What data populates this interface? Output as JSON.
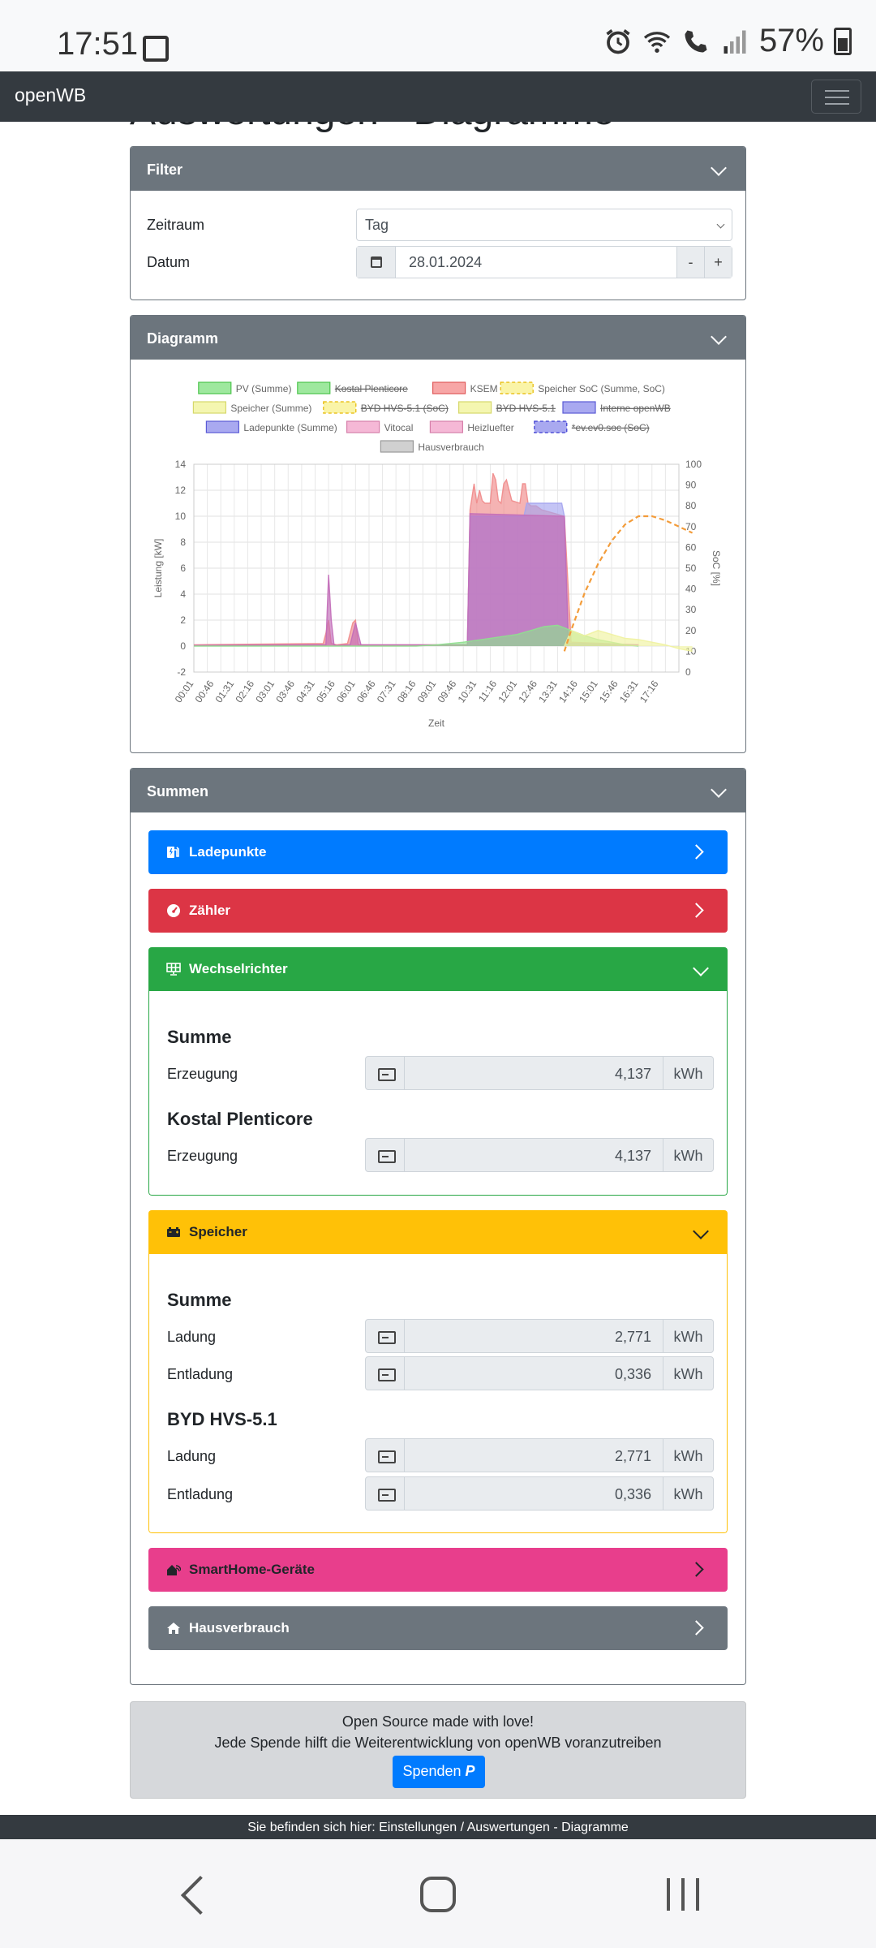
{
  "status": {
    "time": "17:51",
    "battery": "57%"
  },
  "nav": {
    "brand": "openWB"
  },
  "page": {
    "title": "Auswertungen - Diagramme"
  },
  "filter": {
    "header": "Filter",
    "zeitraum_label": "Zeitraum",
    "zeitraum_value": "Tag",
    "datum_label": "Datum",
    "datum_value": "28.01.2024",
    "minus": "-",
    "plus": "+"
  },
  "diagramm": {
    "header": "Diagramm"
  },
  "chart_data": {
    "type": "area",
    "xlabel": "Zeit",
    "ylabel": "Leistung [kW]",
    "y2label": "SoC [%]",
    "ylim": [
      -2,
      14
    ],
    "y2lim": [
      0,
      100
    ],
    "yticks": [
      "14",
      "12",
      "10",
      "8",
      "6",
      "4",
      "2",
      "0",
      "-2"
    ],
    "y2ticks": [
      "100",
      "90",
      "80",
      "70",
      "60",
      "50",
      "40",
      "30",
      "20",
      "10",
      "0"
    ],
    "categories": [
      "00:01",
      "00:46",
      "01:31",
      "02:16",
      "03:01",
      "03:46",
      "04:31",
      "05:16",
      "06:01",
      "06:46",
      "07:31",
      "08:16",
      "09:01",
      "09:46",
      "10:31",
      "11:16",
      "12:01",
      "12:46",
      "13:31",
      "14:16",
      "15:01",
      "15:46",
      "16:31",
      "17:16"
    ],
    "legend": [
      {
        "name": "PV (Summe)",
        "color": "#9ee89e",
        "border": "#4cc44c",
        "dashed": false,
        "hidden": false
      },
      {
        "name": "Kostal Plenticore",
        "color": "#9ee89e",
        "border": "#4cc44c",
        "dashed": false,
        "hidden": true
      },
      {
        "name": "KSEM",
        "color": "#f7a6a6",
        "border": "#e05a5a",
        "dashed": false,
        "hidden": false
      },
      {
        "name": "Speicher SoC (Summe, SoC)",
        "color": "#faf4a8",
        "border": "#e6b800",
        "dashed": true,
        "hidden": false
      },
      {
        "name": "Speicher (Summe)",
        "color": "#f4f6b0",
        "border": "#d6d86a",
        "dashed": false,
        "hidden": false
      },
      {
        "name": "BYD HVS-5.1 (SoC)",
        "color": "#faf4a8",
        "border": "#e6b800",
        "dashed": true,
        "hidden": true
      },
      {
        "name": "BYD HVS-5.1",
        "color": "#f4f6b0",
        "border": "#d6d86a",
        "dashed": false,
        "hidden": true
      },
      {
        "name": "Interne openWB",
        "color": "#a9a9f0",
        "border": "#5a5ad6",
        "dashed": false,
        "hidden": true
      },
      {
        "name": "Ladepunkte (Summe)",
        "color": "#a9a9f0",
        "border": "#5a5ad6",
        "dashed": false,
        "hidden": false
      },
      {
        "name": "Vitocal",
        "color": "#f5b8d6",
        "border": "#d680aa",
        "dashed": false,
        "hidden": false
      },
      {
        "name": "Heizluefter",
        "color": "#f5b8d6",
        "border": "#d680aa",
        "dashed": false,
        "hidden": false
      },
      {
        "name": "*ev.ev0.soc (SoC)",
        "color": "#a9a9f0",
        "border": "#3a3ad0",
        "dashed": true,
        "hidden": true
      },
      {
        "name": "Hausverbrauch",
        "color": "#d0d0d0",
        "border": "#999999",
        "dashed": false,
        "hidden": false
      }
    ],
    "series": [
      {
        "name": "KSEM",
        "color": "#f08a8a",
        "x": [
          0,
          9.6,
          9.8,
          10.0,
          10.2,
          10.6,
          11.4,
          11.8,
          12.0,
          12.2,
          13.4,
          20.3,
          20.5,
          20.8,
          21.0,
          21.2,
          21.4,
          21.6,
          22.0,
          22.2,
          22.4,
          22.6,
          22.8,
          23.0,
          23.2,
          23.6,
          24.2,
          24.4,
          24.6,
          24.8,
          25.0,
          25.4,
          25.8,
          27.5,
          28.0,
          33.0
        ],
        "y": [
          0.1,
          0.2,
          1.0,
          2.0,
          0.2,
          0.1,
          0.2,
          1.8,
          2.0,
          0.1,
          0.1,
          0.1,
          10.5,
          12.5,
          11.0,
          12.0,
          11.2,
          11.0,
          11.0,
          13.3,
          12.8,
          11.2,
          11.0,
          12.5,
          12.8,
          11.2,
          11.0,
          12.5,
          12.5,
          11.0,
          10.8,
          10.8,
          10.5,
          10.0,
          0.3,
          0.1
        ]
      },
      {
        "name": "Ladepunkte (Summe)",
        "color": "#a5a5f0",
        "x": [
          20.3,
          20.5,
          24.5,
          24.7,
          27.3,
          27.5,
          27.8
        ],
        "y": [
          0,
          10.0,
          10.0,
          11.0,
          11.0,
          10.0,
          0
        ]
      },
      {
        "name": "Vitocal",
        "color": "#c26bb8",
        "x": [
          0,
          9.8,
          10.0,
          10.2,
          10.4,
          10.6,
          11.6,
          12.0,
          12.4,
          20.3,
          20.5,
          27.5,
          27.8,
          33.0
        ],
        "y": [
          0.05,
          0.1,
          5.5,
          2.0,
          0.1,
          0.05,
          0.1,
          1.8,
          0.1,
          0.1,
          10.2,
          10.0,
          0.2,
          0.1
        ]
      },
      {
        "name": "PV (Summe)",
        "color": "#8fe08f",
        "x": [
          0,
          16.5,
          18.0,
          20.0,
          22.0,
          24.0,
          25.0,
          26.0,
          27.0,
          28.0,
          29.0,
          30.0,
          31.0,
          32.0,
          33.0
        ],
        "y": [
          0,
          0,
          0.1,
          0.3,
          0.6,
          0.9,
          1.2,
          1.5,
          1.6,
          1.2,
          0.8,
          0.5,
          0.3,
          0.1,
          0
        ]
      },
      {
        "name": "Speicher (Summe)",
        "color": "#f0f2a0",
        "x": [
          27.5,
          28.0,
          28.5,
          29.0,
          30.0,
          31.0,
          32.0,
          33.0,
          34.0,
          35.0,
          36.0,
          37.0
        ],
        "y": [
          0,
          1.2,
          1.0,
          0.8,
          1.2,
          0.9,
          0.6,
          0.5,
          0.3,
          0.1,
          -0.2,
          -0.4
        ]
      },
      {
        "name": "Speicher SoC (Summe, SoC)",
        "color": "#f39c3a",
        "axis": "right",
        "x": [
          27.5,
          28.0,
          29.0,
          30.0,
          31.0,
          32.0,
          33.0,
          34.0,
          35.0,
          36.0,
          37.0
        ],
        "y": [
          10,
          20,
          38,
          52,
          63,
          71,
          75,
          75,
          73,
          70,
          67
        ]
      }
    ]
  },
  "summen": {
    "header": "Summen",
    "ladepunkte": "Ladepunkte",
    "zaehler": "Zähler",
    "wechselrichter": {
      "header": "Wechselrichter",
      "summe_title": "Summe",
      "summe_label": "Erzeugung",
      "summe_value": "4,137",
      "kostal_title": "Kostal Plenticore",
      "kostal_label": "Erzeugung",
      "kostal_value": "4,137",
      "unit": "kWh"
    },
    "speicher": {
      "header": "Speicher",
      "summe_title": "Summe",
      "summe_ladung_label": "Ladung",
      "summe_ladung_value": "2,771",
      "summe_entladung_label": "Entladung",
      "summe_entladung_value": "0,336",
      "byd_title": "BYD HVS-5.1",
      "byd_ladung_label": "Ladung",
      "byd_ladung_value": "2,771",
      "byd_entladung_label": "Entladung",
      "byd_entladung_value": "0,336",
      "unit": "kWh"
    },
    "smarthome": "SmartHome-Geräte",
    "hausverbrauch": "Hausverbrauch"
  },
  "donate": {
    "line1": "Open Source made with love!",
    "line2": "Jede Spende hilft die Weiterentwicklung von openWB voranzutreiben",
    "button": "Spenden"
  },
  "footer": {
    "text": "Sie befinden sich hier: Einstellungen / Auswertungen - Diagramme"
  }
}
